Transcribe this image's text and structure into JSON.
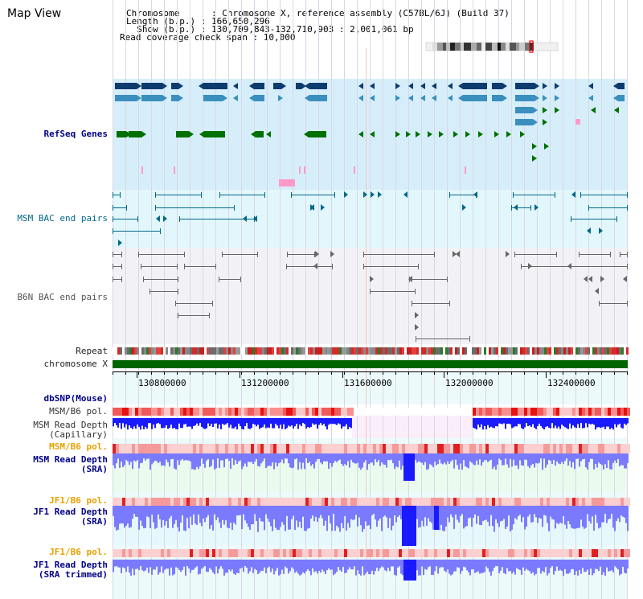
{
  "header": {
    "title": "Map View",
    "info_lines": [
      "Chromosome      : Chromosome X, reference assembly (C57BL/6J) (Build 37)",
      "Length (b.p.) : 166,650,296",
      "  Show (b.p.) : 130,709,843-132,710,903 : 2,001,061 bp",
      "Read coverage check span : 10,000"
    ]
  },
  "tracks": {
    "refseq": "RefSeq Genes",
    "msm_bac": "MSM BAC end pairs",
    "b6n_bac": "B6N BAC end pairs",
    "repeat": "Repeat",
    "chromosome": "chromosome X",
    "dbsnp": "dbSNP(Mouse)",
    "msm_b6_pol_1": "MSM/B6 pol.",
    "msm_read_depth_cap_1": "MSM Read Depth",
    "msm_read_depth_cap_2": "(Capillary)",
    "msm_b6_pol_2": "MSM/B6 pol.",
    "msm_read_depth_sra_1": "MSM Read Depth",
    "msm_read_depth_sra_2": "(SRA)",
    "jf1_b6_pol_1": "JF1/B6 pol.",
    "jf1_read_depth_1": "JF1 Read Depth",
    "jf1_read_depth_2": "(SRA)",
    "jf1_b6_pol_2": "JF1/B6 pol.",
    "jf1_trim_1": "JF1 Read Depth",
    "jf1_trim_2": "(SRA trimmed)"
  },
  "axis": {
    "tick_labels": [
      "130800000",
      "131200000",
      "131600000",
      "132000000",
      "132400000"
    ]
  },
  "colors": {
    "gene_dark": "#0d3b6e",
    "gene_mid": "#3a8fbf",
    "gene_green": "#007000",
    "refseq_bg": "#d6eefa",
    "msm_bg": "#e2f7fb",
    "b6n_bg": "#f2f2f6",
    "depth_blue": "#1a1aff",
    "depth_light": "#7a7aff",
    "pol_red": "#ff5050"
  }
}
